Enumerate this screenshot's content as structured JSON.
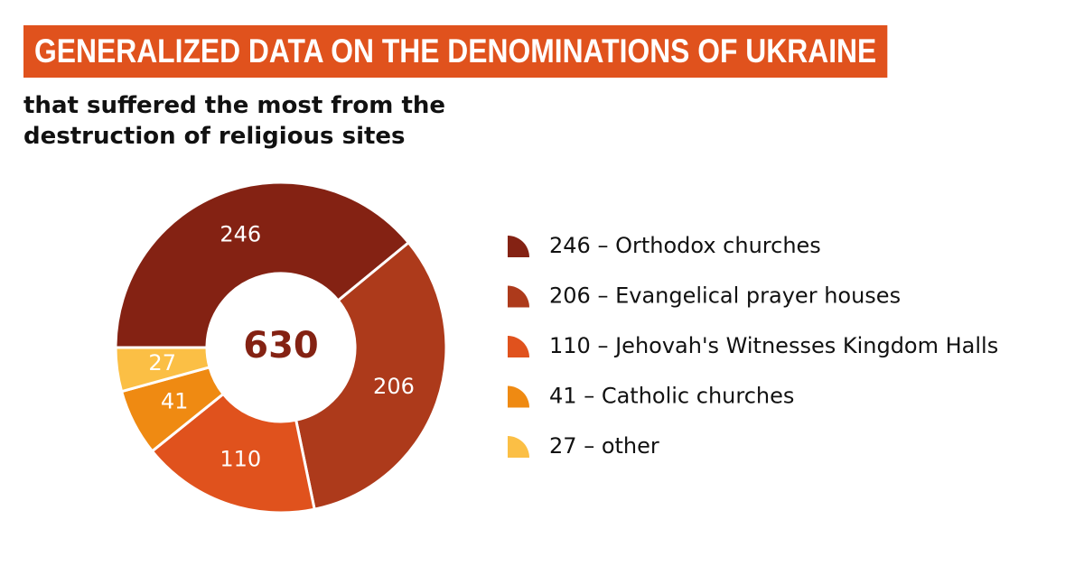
{
  "chart_data": {
    "type": "donut",
    "title": "GENERALIZED DATA ON THE DENOMINATIONS OF UKRAINE",
    "subtitle": "that suffered the most from the destruction of religious sites",
    "total": 630,
    "legend_separator": "–",
    "categories": [
      "Orthodox churches",
      "Evangelical prayer houses",
      "Jehovah's Witnesses Kingdom Halls",
      "Catholic churches",
      "other"
    ],
    "values": [
      246,
      206,
      110,
      41,
      27
    ],
    "colors": [
      "#842213",
      "#ad3a1b",
      "#e0521d",
      "#ef8a12",
      "#fbbf45"
    ],
    "legend_position": "right"
  }
}
